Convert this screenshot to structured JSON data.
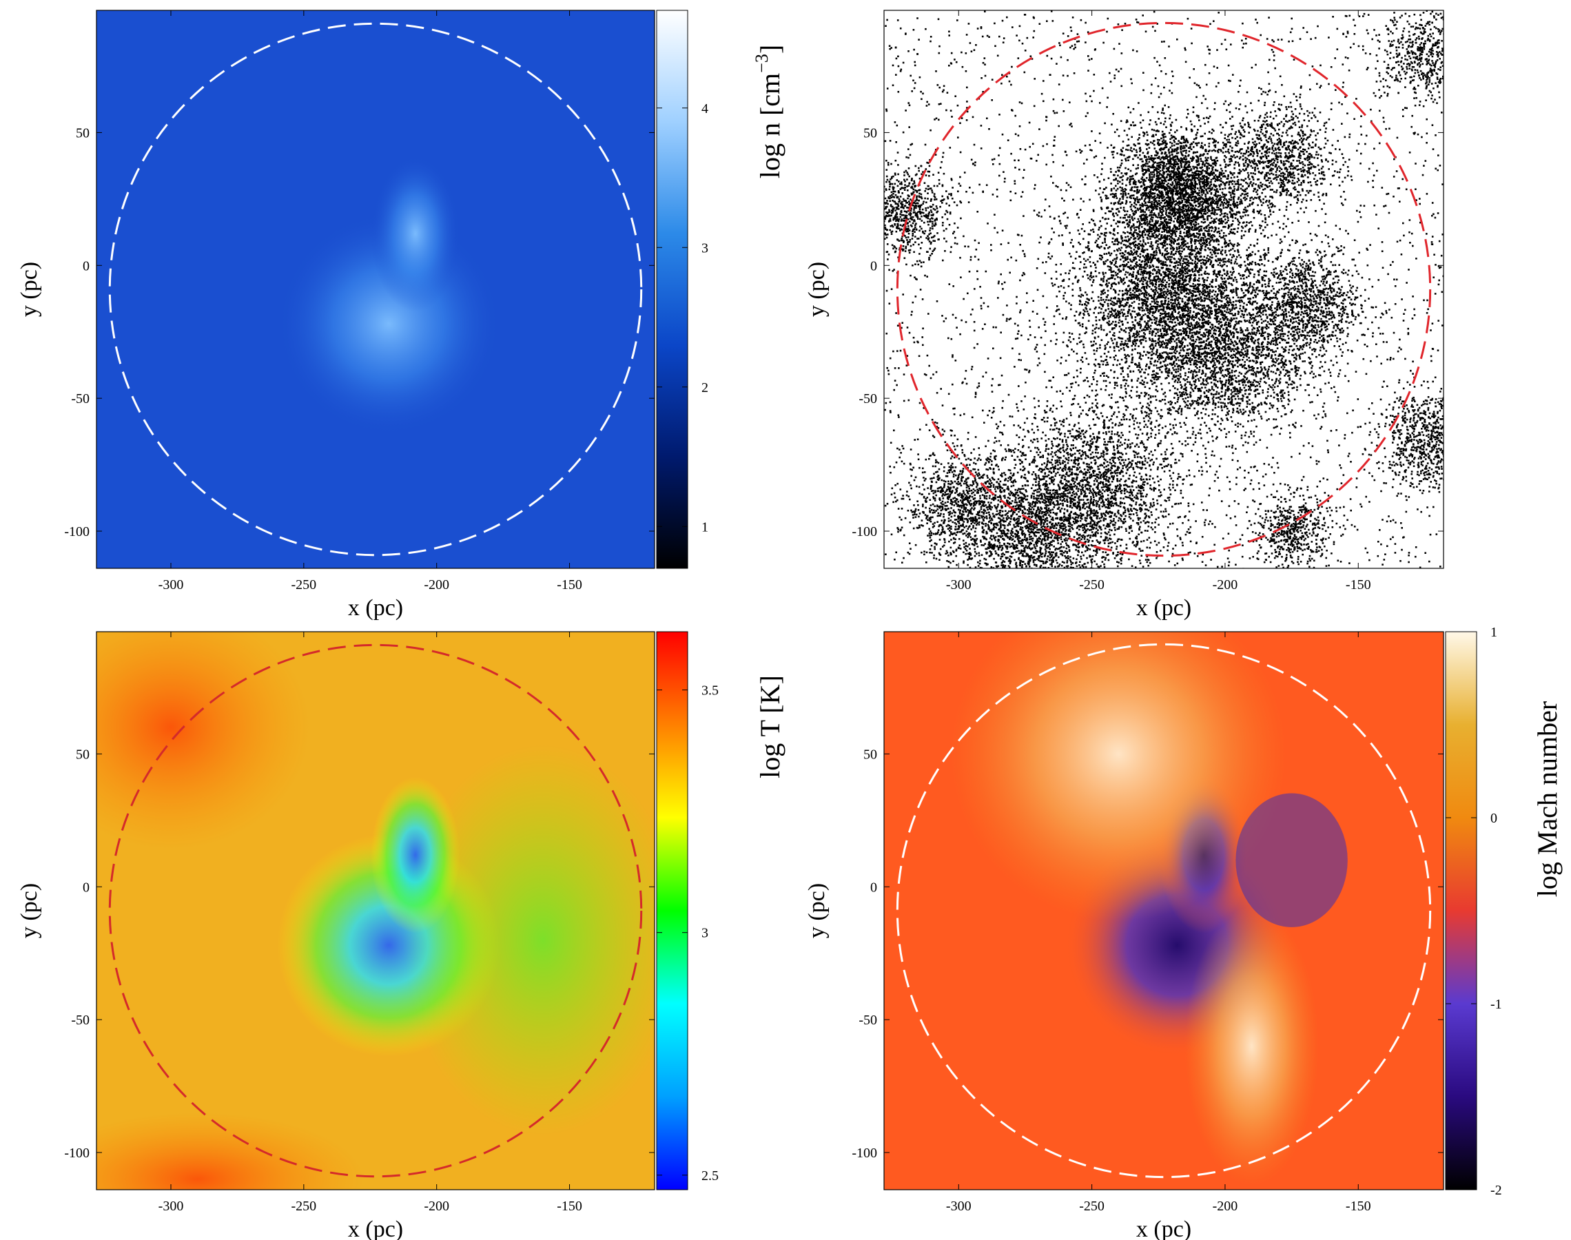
{
  "figure": {
    "panels": [
      {
        "id": "density",
        "colorbar_label": "log n [cm",
        "colorbar_label_sup": "−3",
        "colorbar_label_end": "]",
        "colormap": [
          "#000000",
          "#001a6e",
          "#0b46c8",
          "#2c8ae8",
          "#9fd0ff",
          "#ffffff"
        ],
        "circle_color": "#ffffff",
        "bg": "#1a4fd0"
      },
      {
        "id": "particles",
        "circle_color": "#e0252b",
        "bg": "#ffffff"
      },
      {
        "id": "temperature",
        "colorbar_label": "log T [K]",
        "colormap": [
          "#0000ff",
          "#00a0ff",
          "#00ffff",
          "#00ff00",
          "#ffff00",
          "#ff8000",
          "#ff0000"
        ],
        "circle_color": "#d42a2a",
        "bg": "#f1b020"
      },
      {
        "id": "mach",
        "colorbar_label": "log Mach number",
        "colormap": [
          "#000000",
          "#2a0a80",
          "#5a3ad0",
          "#e83a30",
          "#f08a10",
          "#e8b030",
          "#fff8e8"
        ],
        "circle_color": "#ffffff",
        "bg": "#ff5a20"
      }
    ]
  },
  "chart_data": [
    {
      "type": "heatmap",
      "title": "",
      "xlabel": "x (pc)",
      "ylabel": "y (pc)",
      "xlim": [
        -328,
        -118
      ],
      "ylim": [
        -114,
        96
      ],
      "xticks": [
        -300,
        -250,
        -200,
        -150
      ],
      "yticks": [
        -100,
        -50,
        0,
        50
      ],
      "xtick_labels": [
        "-300",
        "-250",
        "-200",
        "-150"
      ],
      "ytick_labels": [
        "-100",
        "-50",
        "0",
        "50"
      ],
      "colorbar": {
        "label": "log n [cm^-3]",
        "range": [
          0.7,
          4.7
        ],
        "ticks": [
          1,
          2,
          3,
          4
        ],
        "tick_labels": [
          "1",
          "2",
          "3",
          "4"
        ]
      },
      "circle": {
        "center_pc": [
          -223,
          -9
        ],
        "radius_pc": 100,
        "style": "dashed",
        "color": "white"
      }
    },
    {
      "type": "scatter",
      "title": "",
      "xlabel": "x (pc)",
      "ylabel": "y (pc)",
      "xlim": [
        -328,
        -118
      ],
      "ylim": [
        -114,
        96
      ],
      "xticks": [
        -300,
        -250,
        -200,
        -150
      ],
      "yticks": [
        -100,
        -50,
        0,
        50
      ],
      "xtick_labels": [
        "-300",
        "-250",
        "-200",
        "-150"
      ],
      "ytick_labels": [
        "-100",
        "-50",
        "0",
        "50"
      ],
      "clusters_pc": [
        {
          "center": [
            -218,
            28
          ],
          "sigma": 12,
          "weight": 3
        },
        {
          "center": [
            -222,
            -10
          ],
          "sigma": 18,
          "weight": 4
        },
        {
          "center": [
            -200,
            -35
          ],
          "sigma": 15,
          "weight": 2
        },
        {
          "center": [
            -250,
            -85
          ],
          "sigma": 16,
          "weight": 2.5
        },
        {
          "center": [
            -275,
            -100
          ],
          "sigma": 12,
          "weight": 1.5
        },
        {
          "center": [
            -170,
            -15
          ],
          "sigma": 10,
          "weight": 1.2
        },
        {
          "center": [
            -180,
            40
          ],
          "sigma": 10,
          "weight": 1
        },
        {
          "center": [
            -320,
            20
          ],
          "sigma": 8,
          "weight": 0.8
        },
        {
          "center": [
            -300,
            -90
          ],
          "sigma": 10,
          "weight": 1
        },
        {
          "center": [
            -125,
            -65
          ],
          "sigma": 9,
          "weight": 0.8
        },
        {
          "center": [
            -175,
            -100
          ],
          "sigma": 7,
          "weight": 0.6
        },
        {
          "center": [
            -125,
            80
          ],
          "sigma": 8,
          "weight": 0.6
        }
      ],
      "circle": {
        "center_pc": [
          -223,
          -9
        ],
        "radius_pc": 100,
        "style": "dashed",
        "color": "red"
      }
    },
    {
      "type": "heatmap",
      "title": "",
      "xlabel": "x (pc)",
      "ylabel": "y (pc)",
      "xlim": [
        -328,
        -118
      ],
      "ylim": [
        -114,
        96
      ],
      "xticks": [
        -300,
        -250,
        -200,
        -150
      ],
      "yticks": [
        -100,
        -50,
        0,
        50
      ],
      "xtick_labels": [
        "-300",
        "-250",
        "-200",
        "-150"
      ],
      "ytick_labels": [
        "-100",
        "-50",
        "0",
        "50"
      ],
      "colorbar": {
        "label": "log T [K]",
        "range": [
          2.47,
          3.62
        ],
        "ticks": [
          2.5,
          3,
          3.5
        ],
        "tick_labels": [
          "2.5",
          "3",
          "3.5"
        ]
      },
      "circle": {
        "center_pc": [
          -223,
          -9
        ],
        "radius_pc": 100,
        "style": "dashed",
        "color": "red"
      }
    },
    {
      "type": "heatmap",
      "title": "",
      "xlabel": "x (pc)",
      "ylabel": "y (pc)",
      "xlim": [
        -328,
        -118
      ],
      "ylim": [
        -114,
        96
      ],
      "xticks": [
        -300,
        -250,
        -200,
        -150
      ],
      "yticks": [
        -100,
        -50,
        0,
        50
      ],
      "xtick_labels": [
        "-300",
        "-250",
        "-200",
        "-150"
      ],
      "ytick_labels": [
        "-100",
        "-50",
        "0",
        "50"
      ],
      "colorbar": {
        "label": "log Mach number",
        "range": [
          -2,
          1
        ],
        "ticks": [
          -2,
          -1,
          0,
          1
        ],
        "tick_labels": [
          "-2",
          "-1",
          "0",
          "1"
        ]
      },
      "circle": {
        "center_pc": [
          -223,
          -9
        ],
        "radius_pc": 100,
        "style": "dashed",
        "color": "white"
      }
    }
  ]
}
